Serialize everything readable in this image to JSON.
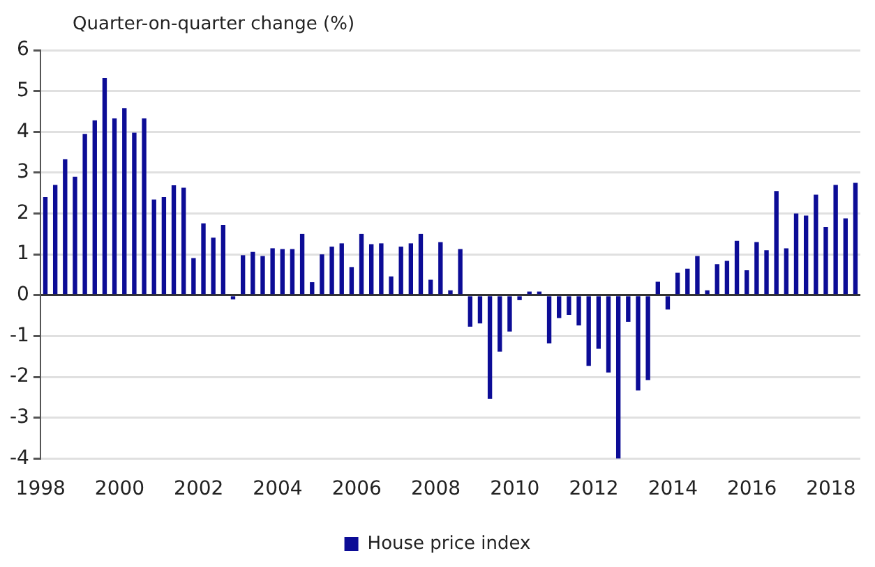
{
  "chart_data": {
    "type": "bar",
    "ylabel": "Quarter-on-quarter change (%)",
    "categories": [
      "1998",
      null,
      null,
      null,
      null,
      null,
      null,
      null,
      "2000",
      null,
      null,
      null,
      null,
      null,
      null,
      null,
      "2002",
      null,
      null,
      null,
      null,
      null,
      null,
      null,
      "2004",
      null,
      null,
      null,
      null,
      null,
      null,
      null,
      "2006",
      null,
      null,
      null,
      null,
      null,
      null,
      null,
      "2008",
      null,
      null,
      null,
      null,
      null,
      null,
      null,
      "2010",
      null,
      null,
      null,
      null,
      null,
      null,
      null,
      "2012",
      null,
      null,
      null,
      null,
      null,
      null,
      null,
      "2014",
      null,
      null,
      null,
      null,
      null,
      null,
      null,
      "2016",
      null,
      null,
      null,
      null,
      null,
      null,
      null,
      "2018",
      null,
      null
    ],
    "series": [
      {
        "name": "House price index",
        "color": "#0c0c96",
        "values": [
          2.4,
          2.7,
          3.33,
          2.9,
          3.95,
          4.28,
          5.32,
          4.33,
          4.58,
          3.98,
          4.33,
          2.34,
          2.4,
          2.69,
          2.63,
          0.91,
          1.76,
          1.41,
          1.72,
          -0.1,
          0.98,
          1.06,
          0.96,
          1.15,
          1.13,
          1.13,
          1.5,
          0.32,
          1.0,
          1.19,
          1.27,
          0.69,
          1.5,
          1.25,
          1.27,
          0.46,
          1.19,
          1.27,
          1.5,
          0.38,
          1.3,
          0.12,
          1.13,
          -0.77,
          -0.69,
          -2.54,
          -1.38,
          -0.89,
          -0.12,
          0.09,
          0.09,
          -1.18,
          -0.56,
          -0.48,
          -0.74,
          -1.73,
          -1.31,
          -1.89,
          -4.0,
          -0.65,
          -2.33,
          -2.08,
          0.33,
          -0.35,
          0.55,
          0.65,
          0.96,
          0.12,
          0.76,
          0.84,
          1.33,
          0.61,
          1.3,
          1.1,
          2.55,
          1.15,
          2.0,
          1.95,
          2.46,
          1.67,
          2.7,
          1.88,
          2.75
        ]
      }
    ],
    "ylim": [
      -4,
      6
    ],
    "yticks": [
      -4,
      -3,
      -2,
      -1,
      0,
      1,
      2,
      3,
      4,
      5,
      6
    ],
    "grid": "y",
    "legend": "bottom"
  }
}
